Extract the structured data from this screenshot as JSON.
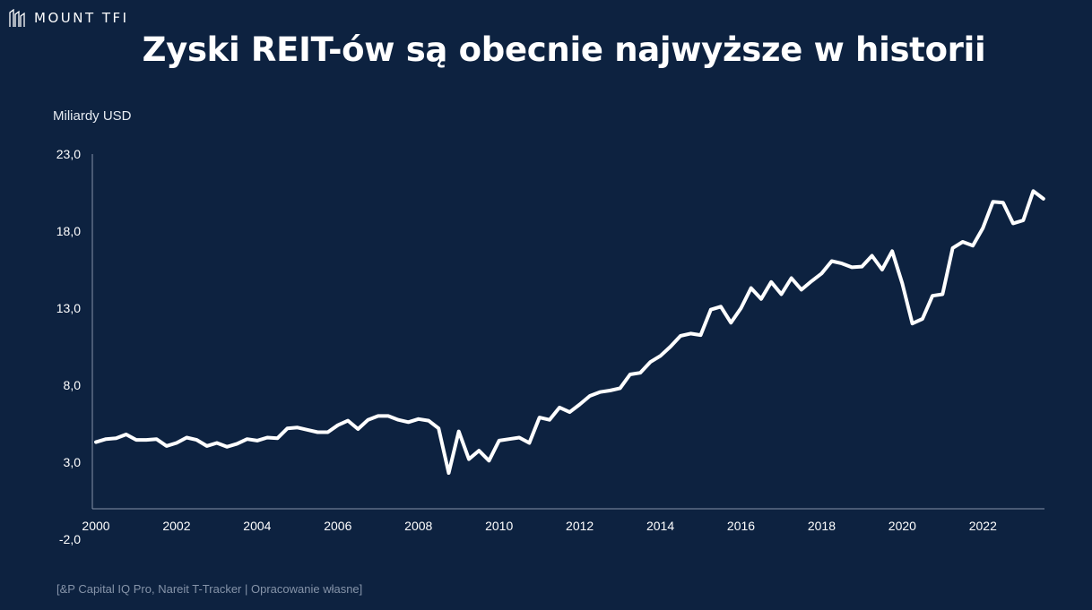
{
  "brand": {
    "name": "MOUNT TFI",
    "icon": "mount-logo-icon"
  },
  "title": "Zyski REIT-ów są obecnie najwyższe w historii",
  "source": "[&P Capital IQ Pro, Nareit T-Tracker | Opracowanie własne]",
  "colors": {
    "background": "#0d2240",
    "line": "#ffffff",
    "axis": "#8593a8"
  },
  "chart_data": {
    "type": "line",
    "title": "Zyski REIT-ów są obecnie najwyższe w historii",
    "ylabel": "Miliardy USD",
    "xlabel": "",
    "ylim": [
      -2,
      23
    ],
    "xlim": [
      2000,
      2023.75
    ],
    "yticks": [
      -2,
      3,
      8,
      13,
      18,
      23
    ],
    "ytick_labels": [
      "-2,0",
      "3,0",
      "8,0",
      "13,0",
      "18,0",
      "23,0"
    ],
    "xticks": [
      2000,
      2002,
      2004,
      2006,
      2008,
      2010,
      2012,
      2014,
      2016,
      2018,
      2020,
      2022
    ],
    "xtick_labels": [
      "2000",
      "2002",
      "2004",
      "2006",
      "2008",
      "2010",
      "2012",
      "2014",
      "2016",
      "2018",
      "2020",
      "2022"
    ],
    "grid": false,
    "legend": "none",
    "series": [
      {
        "x": [
          2000.0,
          2000.25,
          2000.5,
          2000.75,
          2001.0,
          2001.25,
          2001.5,
          2001.75,
          2002.0,
          2002.25,
          2002.5,
          2002.75,
          2003.0,
          2003.25,
          2003.5,
          2003.75,
          2004.0,
          2004.25,
          2004.5,
          2004.75,
          2005.0,
          2005.25,
          2005.5,
          2005.75,
          2006.0,
          2006.25,
          2006.5,
          2006.75,
          2007.0,
          2007.25,
          2007.5,
          2007.75,
          2008.0,
          2008.25,
          2008.5,
          2008.75,
          2009.0,
          2009.25,
          2009.5,
          2009.75,
          2010.0,
          2010.25,
          2010.5,
          2010.75,
          2011.0,
          2011.25,
          2011.5,
          2011.75,
          2012.0,
          2012.25,
          2012.5,
          2012.75,
          2013.0,
          2013.25,
          2013.5,
          2013.75,
          2014.0,
          2014.25,
          2014.5,
          2014.75,
          2015.0,
          2015.25,
          2015.5,
          2015.75,
          2016.0,
          2016.25,
          2016.5,
          2016.75,
          2017.0,
          2017.25,
          2017.5,
          2017.75,
          2018.0,
          2018.25,
          2018.5,
          2018.75,
          2019.0,
          2019.25,
          2019.5,
          2019.75,
          2020.0,
          2020.25,
          2020.5,
          2020.75,
          2021.0,
          2021.25,
          2021.5,
          2021.75,
          2022.0,
          2022.25,
          2022.5,
          2022.75,
          2023.0,
          2023.25,
          2023.5
        ],
        "values": [
          4.3,
          4.5,
          4.55,
          4.8,
          4.45,
          4.45,
          4.5,
          4.05,
          4.25,
          4.6,
          4.45,
          4.05,
          4.25,
          4.0,
          4.2,
          4.5,
          4.4,
          4.6,
          4.55,
          5.2,
          5.25,
          5.1,
          4.95,
          4.95,
          5.4,
          5.7,
          5.15,
          5.75,
          6.0,
          6.0,
          5.75,
          5.6,
          5.8,
          5.7,
          5.2,
          2.3,
          5.0,
          3.2,
          3.75,
          3.1,
          4.4,
          4.5,
          4.6,
          4.25,
          5.9,
          5.75,
          6.55,
          6.25,
          6.75,
          7.3,
          7.55,
          7.65,
          7.8,
          8.7,
          8.8,
          9.5,
          9.9,
          10.5,
          11.2,
          11.35,
          11.25,
          12.9,
          13.1,
          12.05,
          13.0,
          14.3,
          13.6,
          14.7,
          13.9,
          14.95,
          14.2,
          14.75,
          15.25,
          16.05,
          15.9,
          15.65,
          15.7,
          16.4,
          15.5,
          16.7,
          14.6,
          12.0,
          12.3,
          13.8,
          13.9,
          16.9,
          17.3,
          17.05,
          18.2,
          19.9,
          19.85,
          18.5,
          18.7,
          20.6,
          20.1
        ]
      }
    ]
  }
}
